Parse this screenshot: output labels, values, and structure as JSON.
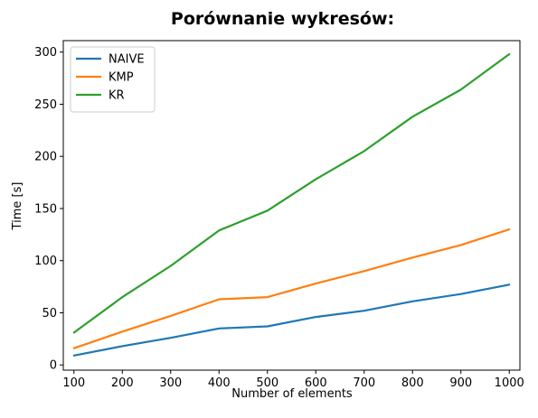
{
  "chart_data": {
    "type": "line",
    "title": "Porównanie wykresów:",
    "xlabel": "Number of elements",
    "ylabel": "Time [s]",
    "xlim": [
      78,
      1022
    ],
    "ylim": [
      -5,
      311
    ],
    "xticks": [
      100,
      200,
      300,
      400,
      500,
      600,
      700,
      800,
      900,
      1000
    ],
    "yticks": [
      0,
      50,
      100,
      150,
      200,
      250,
      300
    ],
    "legend_position": "top-left",
    "grid": false,
    "x": [
      100,
      200,
      300,
      400,
      500,
      600,
      700,
      800,
      900,
      1000
    ],
    "series": [
      {
        "name": "NAIVE",
        "color": "#1f77b4",
        "values": [
          9,
          18,
          26,
          35,
          37,
          46,
          52,
          61,
          68,
          77
        ]
      },
      {
        "name": "KMP",
        "color": "#ff7f0e",
        "values": [
          16,
          32,
          47,
          63,
          65,
          78,
          90,
          103,
          115,
          130
        ]
      },
      {
        "name": "KR",
        "color": "#2ca02c",
        "values": [
          31,
          65,
          95,
          129,
          148,
          178,
          205,
          238,
          264,
          298
        ]
      }
    ]
  }
}
